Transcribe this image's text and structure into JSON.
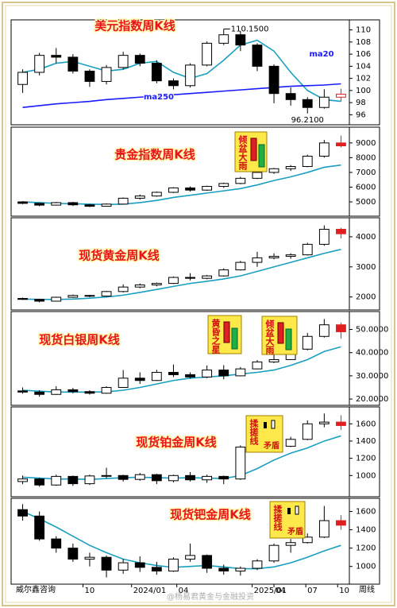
{
  "chart_data": [
    {
      "type": "candlestick",
      "title": "美元指数周K线",
      "ylim": [
        95,
        111
      ],
      "yticks": [
        96,
        98,
        100,
        102,
        104,
        106,
        108,
        110
      ],
      "high_label": "110.1500",
      "low_label": "96.2100",
      "last_color": "#e02020",
      "candles": [
        [
          101,
          103.5,
          99.6,
          103
        ],
        [
          103,
          106.2,
          102.5,
          105.8
        ],
        [
          105.8,
          107,
          104.5,
          105.5
        ],
        [
          105.5,
          106,
          102.8,
          103.2
        ],
        [
          103.2,
          103.5,
          100.6,
          101.5
        ],
        [
          101.5,
          104.2,
          101,
          103.8
        ],
        [
          103.8,
          106.4,
          103.5,
          105.8
        ],
        [
          105.8,
          106.1,
          104,
          104.5
        ],
        [
          104.5,
          105,
          101.2,
          101.6
        ],
        [
          101.6,
          102,
          100.2,
          100.8
        ],
        [
          100.8,
          104.5,
          100.5,
          104.2
        ],
        [
          104.2,
          108.1,
          104,
          107.8
        ],
        [
          107.8,
          110.15,
          107.5,
          109.2
        ],
        [
          109.2,
          109.8,
          106.5,
          107.5
        ],
        [
          107.5,
          107.8,
          103.2,
          104
        ],
        [
          104,
          104.3,
          97.9,
          99.5
        ],
        [
          99.5,
          100.5,
          97.5,
          98.5
        ],
        [
          98.5,
          98.9,
          96.21,
          97.2
        ],
        [
          97.2,
          100.2,
          97,
          98.9
        ],
        [
          98.9,
          100.3,
          98.2,
          99.4
        ]
      ],
      "lines": [
        {
          "name": "ma20",
          "color": "#1a9fc0",
          "values": [
            103,
            103.5,
            104.5,
            104.8,
            104,
            103.2,
            103.5,
            104.5,
            104.8,
            103,
            102,
            102.8,
            105,
            107.5,
            108.3,
            106.5,
            103,
            100,
            98.5,
            98.2
          ]
        },
        {
          "name": "ma250",
          "color": "#1a1aff",
          "values": [
            97.2,
            97.5,
            97.8,
            98,
            98.2,
            98.5,
            98.7,
            98.9,
            99.1,
            99.3,
            99.5,
            99.7,
            99.9,
            100.1,
            100.3,
            100.5,
            100.7,
            100.8,
            100.9,
            101.1
          ]
        }
      ]
    },
    {
      "type": "candlestick",
      "title": "贵金指数周K线",
      "ylim": [
        4300,
        9800
      ],
      "yticks": [
        5000,
        6000,
        7000,
        8000,
        9000
      ],
      "last_color": "#e02020",
      "badges": [
        [
          "倾盆大雨"
        ]
      ],
      "candles": [
        [
          5000,
          5050,
          4850,
          4900
        ],
        [
          4900,
          4950,
          4700,
          4780
        ],
        [
          4780,
          5000,
          4750,
          4950
        ],
        [
          4950,
          5000,
          4720,
          4800
        ],
        [
          4800,
          4850,
          4650,
          4700
        ],
        [
          4700,
          4900,
          4680,
          4850
        ],
        [
          4850,
          5300,
          4820,
          5250
        ],
        [
          5250,
          5500,
          5150,
          5400
        ],
        [
          5400,
          5700,
          5350,
          5650
        ],
        [
          5650,
          6000,
          5600,
          5950
        ],
        [
          5950,
          6050,
          5700,
          5800
        ],
        [
          5800,
          6100,
          5750,
          6050
        ],
        [
          6050,
          6300,
          5950,
          6250
        ],
        [
          6250,
          6700,
          6200,
          6600
        ],
        [
          6600,
          7100,
          6550,
          7000
        ],
        [
          7000,
          7300,
          6900,
          7250
        ],
        [
          7250,
          7500,
          7100,
          7400
        ],
        [
          7400,
          8200,
          7350,
          8100
        ],
        [
          8100,
          9200,
          8000,
          9000
        ],
        [
          9000,
          9500,
          8700,
          8800
        ]
      ],
      "lines": [
        {
          "color": "#1a9fc0",
          "values": [
            5000,
            4950,
            4900,
            4870,
            4850,
            4820,
            4850,
            4950,
            5100,
            5300,
            5450,
            5600,
            5750,
            5900,
            6150,
            6450,
            6700,
            7000,
            7350,
            7500
          ]
        }
      ]
    },
    {
      "type": "candlestick",
      "title": "现货黄金周K线",
      "ylim": [
        1700,
        4500
      ],
      "yticks": [
        2000,
        3000,
        4000
      ],
      "last_color": "#e02020",
      "candles": [
        [
          1950,
          1980,
          1900,
          1920
        ],
        [
          1920,
          1940,
          1820,
          1860
        ],
        [
          1860,
          2010,
          1850,
          1990
        ],
        [
          1990,
          2080,
          1970,
          2050
        ],
        [
          2050,
          2070,
          1990,
          2030
        ],
        [
          2030,
          2200,
          2010,
          2180
        ],
        [
          2180,
          2420,
          2150,
          2330
        ],
        [
          2330,
          2450,
          2290,
          2400
        ],
        [
          2400,
          2480,
          2350,
          2450
        ],
        [
          2450,
          2680,
          2430,
          2650
        ],
        [
          2650,
          2790,
          2550,
          2620
        ],
        [
          2620,
          2730,
          2590,
          2700
        ],
        [
          2700,
          2950,
          2680,
          2900
        ],
        [
          2900,
          3200,
          2880,
          3150
        ],
        [
          3150,
          3500,
          3000,
          3300
        ],
        [
          3300,
          3450,
          3250,
          3350
        ],
        [
          3350,
          3450,
          3270,
          3400
        ],
        [
          3400,
          3800,
          3380,
          3750
        ],
        [
          3750,
          4380,
          3700,
          4250
        ],
        [
          4250,
          4300,
          3950,
          4100
        ]
      ],
      "lines": [
        {
          "color": "#1a9fc0",
          "values": [
            1930,
            1920,
            1915,
            1930,
            1960,
            2000,
            2060,
            2150,
            2250,
            2350,
            2450,
            2520,
            2600,
            2700,
            2850,
            3000,
            3150,
            3300,
            3450,
            3580
          ]
        }
      ]
    },
    {
      "type": "candlestick",
      "title": "现货白银周K线",
      "ylim": [
        19,
        56
      ],
      "yticks": [
        {
          "value": 20,
          "label": "20.0000"
        },
        {
          "value": 30,
          "label": "30.0000"
        },
        {
          "value": 40,
          "label": "40.0000"
        },
        {
          "value": 50,
          "label": "50.0000"
        }
      ],
      "last_color": "#e02020",
      "badges": [
        [
          "黄昏之星"
        ],
        [
          "倾盆大雨"
        ]
      ],
      "candles": [
        [
          23.5,
          25,
          22.3,
          23
        ],
        [
          23,
          23.8,
          21,
          22
        ],
        [
          22,
          25.5,
          21.8,
          24
        ],
        [
          24,
          24.8,
          22.5,
          23.2
        ],
        [
          23.2,
          23.8,
          21.9,
          22.5
        ],
        [
          22.5,
          25.5,
          22.3,
          25
        ],
        [
          25,
          32.5,
          24.8,
          29
        ],
        [
          29,
          31.5,
          26.5,
          28
        ],
        [
          28,
          32.6,
          27.8,
          31.5
        ],
        [
          31.5,
          34.9,
          29.5,
          30.5
        ],
        [
          30.5,
          31.5,
          28.8,
          29.5
        ],
        [
          29.5,
          34.5,
          29,
          32.5
        ],
        [
          32.5,
          34.6,
          28.5,
          30
        ],
        [
          30,
          33.8,
          29.8,
          33
        ],
        [
          33,
          36.8,
          32.8,
          36
        ],
        [
          36,
          39.5,
          35.5,
          37
        ],
        [
          37,
          42,
          36.8,
          41.5
        ],
        [
          41.5,
          48.5,
          41,
          47
        ],
        [
          47,
          54.5,
          46.5,
          52
        ],
        [
          52,
          53,
          46,
          49
        ]
      ],
      "lines": [
        {
          "color": "#1a9fc0",
          "values": [
            23.8,
            23.4,
            23,
            23,
            23,
            23.1,
            23.8,
            25,
            26.5,
            28,
            29,
            29.5,
            30,
            30.8,
            31.5,
            32.5,
            34.5,
            37,
            40.5,
            42.5
          ]
        }
      ]
    },
    {
      "type": "candlestick",
      "title": "现货铂金周K线",
      "ylim": [
        800,
        1750
      ],
      "yticks": [
        1000,
        1200,
        1400,
        1600
      ],
      "last_color": "#e02020",
      "badges": [
        [
          "揉搓线",
          "矛盾"
        ]
      ],
      "candles": [
        [
          930,
          1000,
          900,
          960
        ],
        [
          960,
          975,
          870,
          890
        ],
        [
          890,
          1010,
          880,
          990
        ],
        [
          990,
          1000,
          880,
          905
        ],
        [
          905,
          1010,
          890,
          995
        ],
        [
          995,
          1090,
          970,
          1000
        ],
        [
          1000,
          1010,
          930,
          955
        ],
        [
          955,
          1030,
          940,
          1010
        ],
        [
          1010,
          1020,
          900,
          940
        ],
        [
          940,
          1010,
          920,
          1000
        ],
        [
          1000,
          1040,
          930,
          950
        ],
        [
          950,
          1010,
          915,
          990
        ],
        [
          990,
          1000,
          900,
          960
        ],
        [
          960,
          1350,
          950,
          1330
        ],
        [
          1330,
          1480,
          1320,
          1410
        ],
        [
          1410,
          1460,
          1300,
          1340
        ],
        [
          1340,
          1450,
          1330,
          1420
        ],
        [
          1420,
          1640,
          1410,
          1600
        ],
        [
          1600,
          1720,
          1560,
          1620
        ],
        [
          1620,
          1700,
          1530,
          1580
        ]
      ],
      "lines": [
        {
          "color": "#1a9fc0",
          "values": [
            980,
            970,
            960,
            960,
            955,
            965,
            975,
            980,
            975,
            970,
            975,
            970,
            965,
            1000,
            1080,
            1180,
            1260,
            1320,
            1400,
            1460
          ]
        }
      ]
    },
    {
      "type": "candlestick",
      "title": "现货钯金周K线",
      "ylim": [
        850,
        1700
      ],
      "yticks": [
        1000,
        1200,
        1400,
        1600
      ],
      "last_color": "#e02020",
      "badges": [
        [
          "揉搓线",
          "矛盾"
        ]
      ],
      "candles": [
        [
          1620,
          1680,
          1500,
          1550
        ],
        [
          1550,
          1600,
          1280,
          1300
        ],
        [
          1300,
          1330,
          1150,
          1200
        ],
        [
          1200,
          1250,
          1050,
          1080
        ],
        [
          1080,
          1150,
          1000,
          1100
        ],
        [
          1100,
          1120,
          880,
          960
        ],
        [
          960,
          1080,
          920,
          1040
        ],
        [
          1040,
          1110,
          940,
          990
        ],
        [
          990,
          1050,
          910,
          950
        ],
        [
          950,
          1100,
          940,
          1080
        ],
        [
          1080,
          1250,
          1050,
          1120
        ],
        [
          1120,
          1130,
          930,
          980
        ],
        [
          980,
          1020,
          910,
          950
        ],
        [
          950,
          1000,
          900,
          980
        ],
        [
          980,
          1080,
          960,
          1060
        ],
        [
          1060,
          1250,
          1040,
          1230
        ],
        [
          1230,
          1300,
          1150,
          1260
        ],
        [
          1260,
          1360,
          1250,
          1320
        ],
        [
          1320,
          1660,
          1310,
          1500
        ],
        [
          1500,
          1560,
          1400,
          1450
        ]
      ],
      "lines": [
        {
          "color": "#1a9fc0",
          "values": [
            1600,
            1520,
            1430,
            1330,
            1230,
            1150,
            1080,
            1040,
            1010,
            990,
            1000,
            1010,
            995,
            975,
            975,
            995,
            1040,
            1100,
            1170,
            1230
          ]
        }
      ]
    }
  ],
  "x_axis": {
    "xlim": [
      -0.5,
      19.5
    ],
    "xticks": [
      {
        "value": 3.6,
        "label": "10"
      },
      {
        "value": 6.5,
        "label": "2024/01"
      },
      {
        "value": 9.2,
        "label": "04"
      },
      {
        "value": 13.7,
        "label": "2025/01"
      },
      {
        "value": 15,
        "label": "04"
      },
      {
        "value": 16.9,
        "label": "07"
      },
      {
        "value": 18.8,
        "label": "10"
      }
    ]
  },
  "footer_left": "威尔鑫咨询",
  "footer_right": "周线",
  "watermark": "@杨易君黄金与金融投资"
}
